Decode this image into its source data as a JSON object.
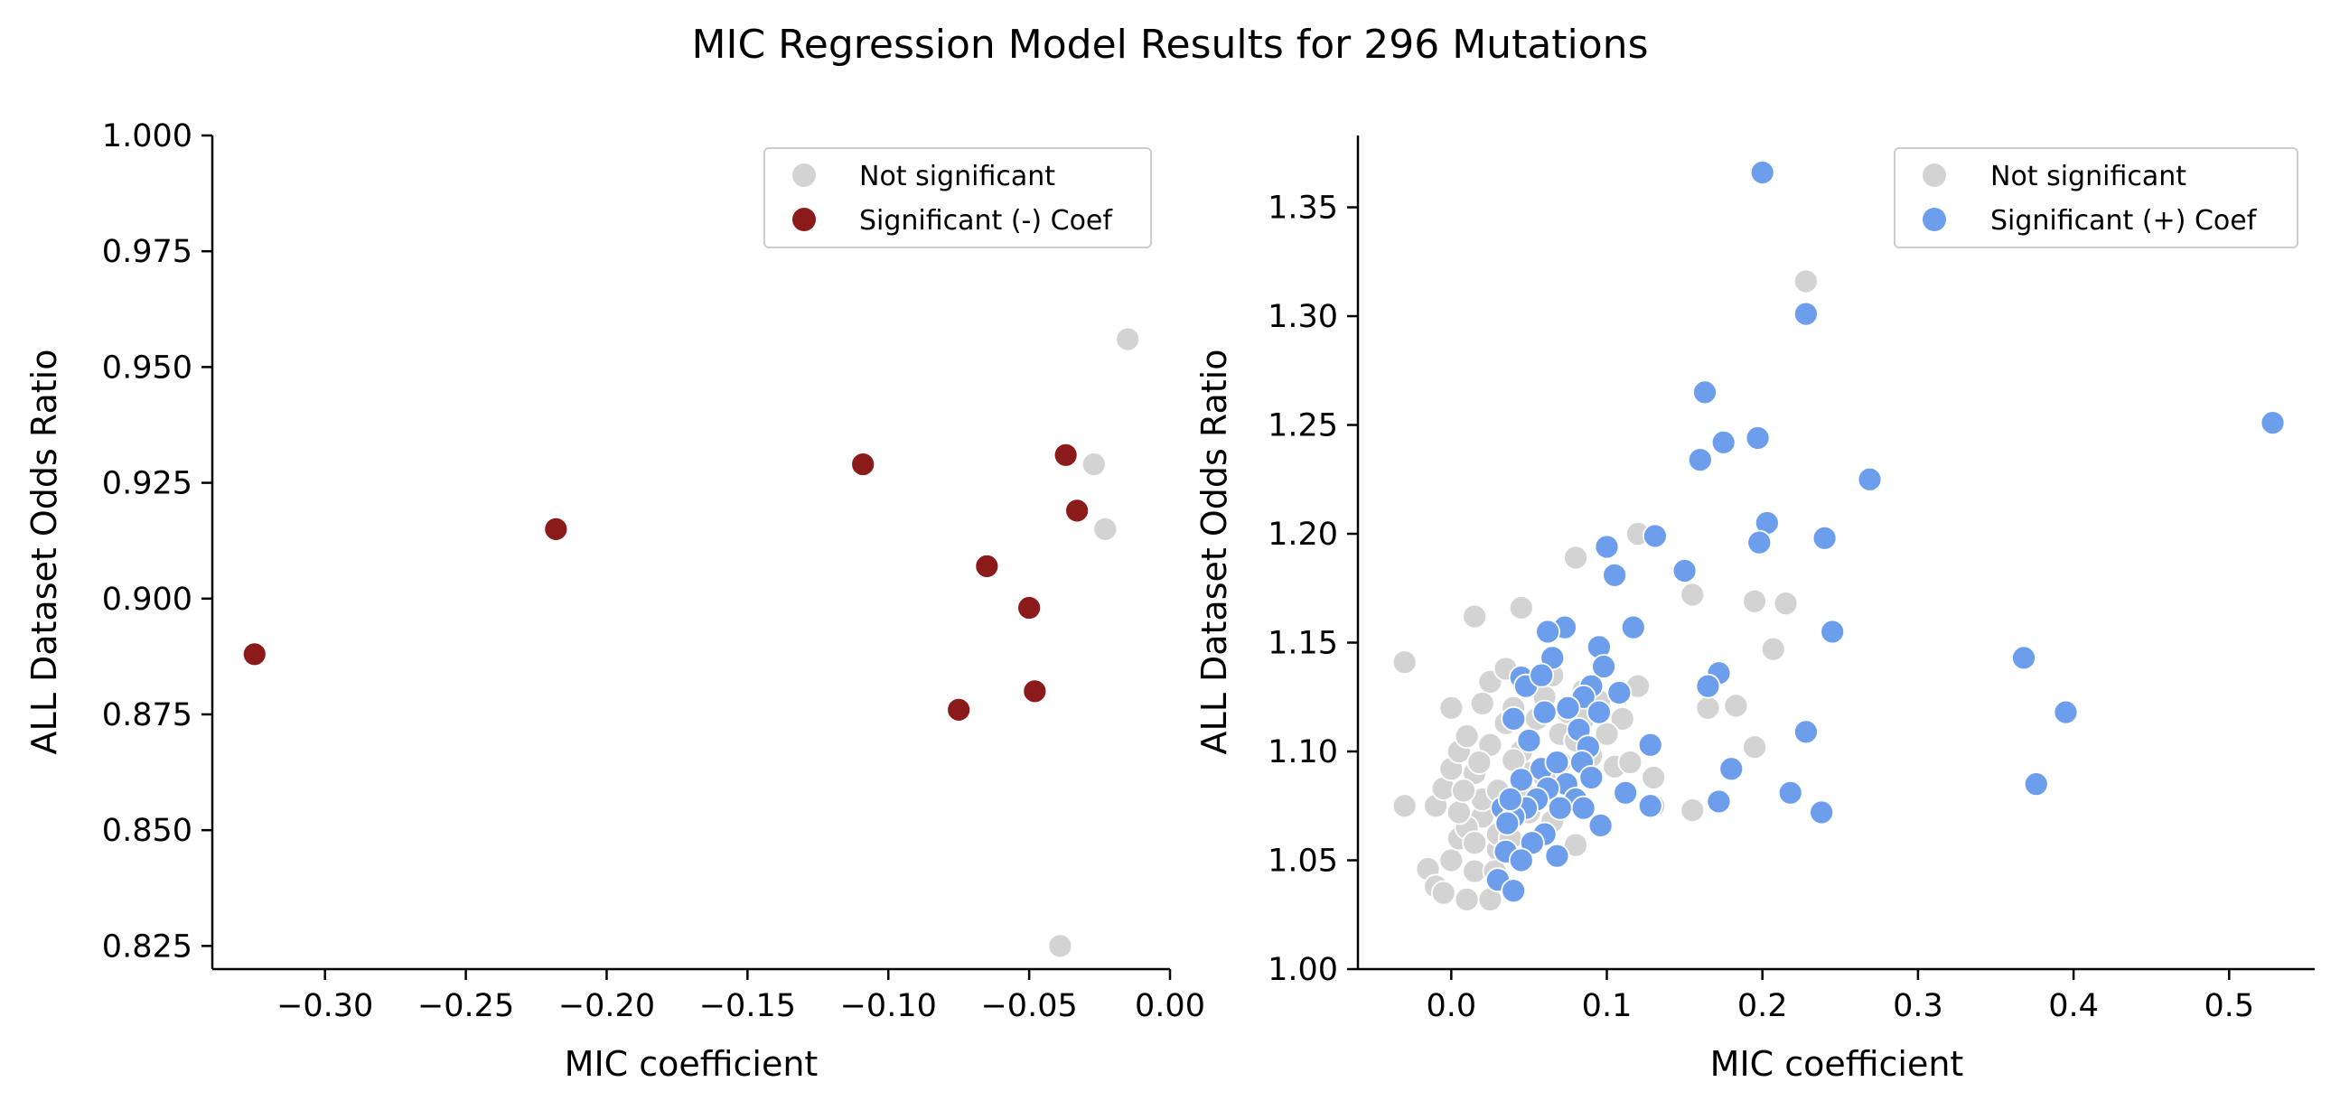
{
  "colors": {
    "not_significant": "#d3d3d3",
    "significant_negative": "#8b1a1a",
    "significant_positive": "#6d9eeb"
  },
  "chart_data": [
    {
      "type": "scatter",
      "title": "MIC Regression Model Results for 296 Mutations",
      "xlabel": "MIC coefficient",
      "ylabel": "ALL Dataset Odds Ratio",
      "xlim": [
        -0.34,
        0.0
      ],
      "ylim": [
        0.82,
        1.0
      ],
      "xticks": [
        -0.3,
        -0.25,
        -0.2,
        -0.15,
        -0.1,
        -0.05,
        0.0
      ],
      "xtick_labels": [
        "−0.30",
        "−0.25",
        "−0.20",
        "−0.15",
        "−0.10",
        "−0.05",
        "0.00"
      ],
      "yticks": [
        0.825,
        0.85,
        0.875,
        0.9,
        0.925,
        0.95,
        0.975,
        1.0
      ],
      "ytick_labels": [
        "0.825",
        "0.850",
        "0.875",
        "0.900",
        "0.925",
        "0.950",
        "0.975",
        "1.000"
      ],
      "legend_position": "top-right",
      "series": [
        {
          "name": "Not significant",
          "color": "#d3d3d3",
          "points": [
            [
              -0.015,
              0.956
            ],
            [
              -0.027,
              0.929
            ],
            [
              -0.023,
              0.915
            ],
            [
              -0.039,
              0.825
            ]
          ]
        },
        {
          "name": "Significant (-) Coef",
          "color": "#8b1a1a",
          "points": [
            [
              -0.325,
              0.888
            ],
            [
              -0.218,
              0.915
            ],
            [
              -0.109,
              0.929
            ],
            [
              -0.037,
              0.931
            ],
            [
              -0.033,
              0.919
            ],
            [
              -0.065,
              0.907
            ],
            [
              -0.05,
              0.898
            ],
            [
              -0.075,
              0.876
            ],
            [
              -0.048,
              0.88
            ]
          ]
        }
      ]
    },
    {
      "type": "scatter",
      "xlabel": "MIC coefficient",
      "ylabel": "ALL Dataset Odds Ratio",
      "xlim": [
        -0.06,
        0.555
      ],
      "ylim": [
        1.0,
        1.383
      ],
      "xticks": [
        0.0,
        0.1,
        0.2,
        0.3,
        0.4,
        0.5
      ],
      "xtick_labels": [
        "0.0",
        "0.1",
        "0.2",
        "0.3",
        "0.4",
        "0.5"
      ],
      "yticks": [
        1.0,
        1.05,
        1.1,
        1.15,
        1.2,
        1.25,
        1.3,
        1.35
      ],
      "ytick_labels": [
        "1.00",
        "1.05",
        "1.10",
        "1.15",
        "1.20",
        "1.25",
        "1.30",
        "1.35"
      ],
      "legend_position": "top-right",
      "series": [
        {
          "name": "Not significant",
          "color": "#d3d3d3",
          "points": [
            [
              -0.03,
              1.141
            ],
            [
              -0.03,
              1.075
            ],
            [
              0.0,
              1.12
            ],
            [
              0.015,
              1.162
            ],
            [
              0.045,
              1.166
            ],
            [
              0.08,
              1.189
            ],
            [
              0.12,
              1.2
            ],
            [
              0.155,
              1.172
            ],
            [
              0.228,
              1.316
            ],
            [
              0.195,
              1.169
            ],
            [
              0.215,
              1.168
            ],
            [
              0.207,
              1.147
            ],
            [
              0.183,
              1.121
            ],
            [
              0.165,
              1.12
            ],
            [
              0.195,
              1.102
            ],
            [
              0.155,
              1.073
            ],
            [
              0.13,
              1.088
            ],
            [
              0.12,
              1.13
            ],
            [
              0.11,
              1.115
            ],
            [
              0.08,
              1.057
            ],
            [
              -0.015,
              1.046
            ],
            [
              -0.01,
              1.038
            ],
            [
              -0.005,
              1.035
            ],
            [
              0.0,
              1.05
            ],
            [
              0.005,
              1.06
            ],
            [
              0.01,
              1.032
            ],
            [
              0.015,
              1.045
            ],
            [
              0.02,
              1.07
            ],
            [
              0.025,
              1.032
            ],
            [
              0.03,
              1.055
            ],
            [
              -0.01,
              1.075
            ],
            [
              -0.005,
              1.083
            ],
            [
              0.0,
              1.092
            ],
            [
              0.005,
              1.1
            ],
            [
              0.01,
              1.107
            ],
            [
              0.015,
              1.09
            ],
            [
              0.02,
              1.078
            ],
            [
              0.025,
              1.103
            ],
            [
              0.03,
              1.082
            ],
            [
              0.035,
              1.113
            ],
            [
              0.04,
              1.12
            ],
            [
              0.045,
              1.1
            ],
            [
              0.05,
              1.09
            ],
            [
              0.055,
              1.115
            ],
            [
              0.06,
              1.125
            ],
            [
              0.065,
              1.135
            ],
            [
              0.07,
              1.108
            ],
            [
              0.075,
              1.118
            ],
            [
              0.085,
              1.128
            ],
            [
              0.09,
              1.098
            ],
            [
              0.1,
              1.108
            ],
            [
              0.105,
              1.093
            ],
            [
              0.115,
              1.095
            ],
            [
              0.13,
              1.075
            ],
            [
              0.025,
              1.132
            ],
            [
              0.035,
              1.138
            ],
            [
              0.02,
              1.122
            ],
            [
              0.01,
              1.065
            ],
            [
              0.005,
              1.072
            ],
            [
              0.015,
              1.058
            ],
            [
              0.03,
              1.062
            ],
            [
              0.04,
              1.096
            ],
            [
              0.045,
              1.083
            ],
            [
              0.05,
              1.072
            ],
            [
              0.055,
              1.078
            ],
            [
              0.06,
              1.088
            ],
            [
              0.07,
              1.095
            ],
            [
              0.075,
              1.085
            ],
            [
              0.08,
              1.105
            ],
            [
              0.085,
              1.115
            ],
            [
              0.095,
              1.123
            ],
            [
              0.065,
              1.068
            ],
            [
              0.028,
              1.045
            ],
            [
              0.018,
              1.095
            ],
            [
              0.008,
              1.082
            ],
            [
              0.038,
              1.06
            ]
          ]
        },
        {
          "name": "Significant (+) Coef",
          "color": "#6d9eeb",
          "points": [
            [
              0.2,
              1.366
            ],
            [
              0.228,
              1.301
            ],
            [
              0.163,
              1.265
            ],
            [
              0.197,
              1.244
            ],
            [
              0.175,
              1.242
            ],
            [
              0.16,
              1.234
            ],
            [
              0.269,
              1.225
            ],
            [
              0.528,
              1.251
            ],
            [
              0.203,
              1.205
            ],
            [
              0.24,
              1.198
            ],
            [
              0.198,
              1.196
            ],
            [
              0.131,
              1.199
            ],
            [
              0.1,
              1.194
            ],
            [
              0.15,
              1.183
            ],
            [
              0.105,
              1.181
            ],
            [
              0.117,
              1.157
            ],
            [
              0.245,
              1.155
            ],
            [
              0.368,
              1.143
            ],
            [
              0.395,
              1.118
            ],
            [
              0.376,
              1.085
            ],
            [
              0.228,
              1.109
            ],
            [
              0.218,
              1.081
            ],
            [
              0.238,
              1.072
            ],
            [
              0.18,
              1.092
            ],
            [
              0.172,
              1.077
            ],
            [
              0.128,
              1.075
            ],
            [
              0.128,
              1.103
            ],
            [
              0.112,
              1.081
            ],
            [
              0.096,
              1.066
            ],
            [
              0.172,
              1.136
            ],
            [
              0.165,
              1.13
            ],
            [
              0.073,
              1.157
            ],
            [
              0.062,
              1.155
            ],
            [
              0.095,
              1.148
            ],
            [
              0.065,
              1.143
            ],
            [
              0.098,
              1.139
            ],
            [
              0.045,
              1.134
            ],
            [
              0.048,
              1.13
            ],
            [
              0.058,
              1.135
            ],
            [
              0.09,
              1.13
            ],
            [
              0.108,
              1.127
            ],
            [
              0.085,
              1.125
            ],
            [
              0.06,
              1.118
            ],
            [
              0.075,
              1.12
            ],
            [
              0.095,
              1.118
            ],
            [
              0.04,
              1.115
            ],
            [
              0.082,
              1.11
            ],
            [
              0.088,
              1.102
            ],
            [
              0.05,
              1.105
            ],
            [
              0.058,
              1.092
            ],
            [
              0.068,
              1.095
            ],
            [
              0.084,
              1.095
            ],
            [
              0.074,
              1.085
            ],
            [
              0.045,
              1.087
            ],
            [
              0.062,
              1.083
            ],
            [
              0.09,
              1.088
            ],
            [
              0.08,
              1.078
            ],
            [
              0.055,
              1.078
            ],
            [
              0.07,
              1.074
            ],
            [
              0.033,
              1.074
            ],
            [
              0.048,
              1.074
            ],
            [
              0.04,
              1.07
            ],
            [
              0.036,
              1.067
            ],
            [
              0.06,
              1.062
            ],
            [
              0.052,
              1.058
            ],
            [
              0.035,
              1.054
            ],
            [
              0.045,
              1.05
            ],
            [
              0.03,
              1.041
            ],
            [
              0.04,
              1.036
            ],
            [
              0.068,
              1.052
            ],
            [
              0.085,
              1.074
            ],
            [
              0.038,
              1.078
            ]
          ]
        }
      ]
    }
  ]
}
